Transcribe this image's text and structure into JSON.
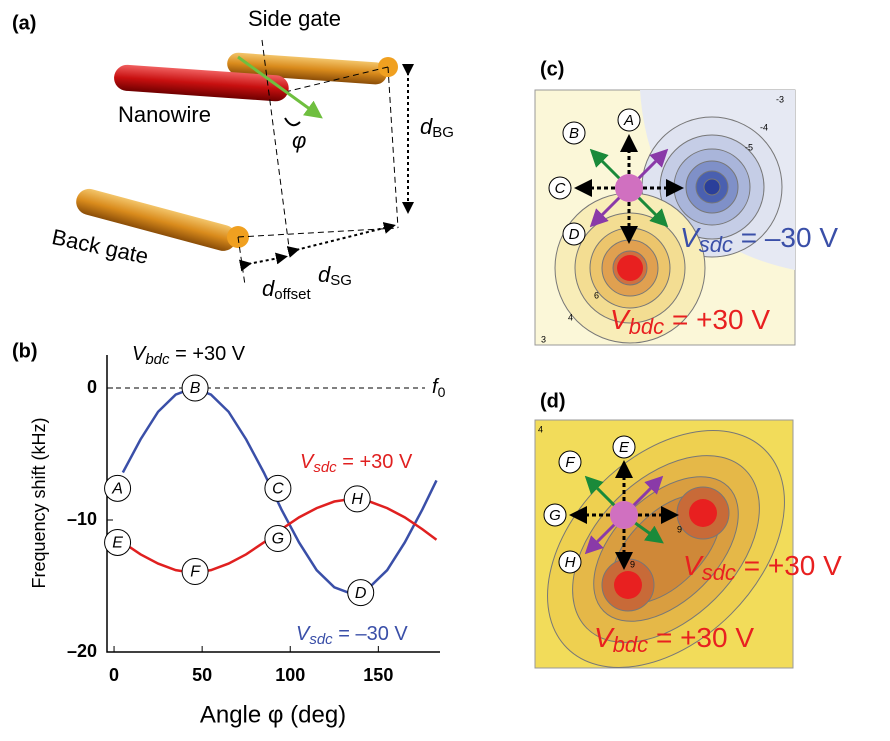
{
  "panels": {
    "a": {
      "label": "(a)",
      "side_gate": "Side gate",
      "nanowire": "Nanowire",
      "angle": "φ",
      "back_gate": "Back gate",
      "d_bg": [
        "d",
        "BG"
      ],
      "d_sg": [
        "d",
        "SG"
      ],
      "d_offset": [
        "d",
        "offset"
      ]
    },
    "c": {
      "label": "(c)",
      "markers": [
        "A",
        "B",
        "C",
        "D"
      ],
      "v_sdc": [
        "V",
        "sdc",
        " = –30 V"
      ],
      "v_bdc": [
        "V",
        "bdc",
        " = +30 V"
      ],
      "contour_labels": [
        "-3",
        "-4",
        "-5",
        "3",
        "4",
        "6"
      ]
    },
    "d": {
      "label": "(d)",
      "markers": [
        "E",
        "F",
        "G",
        "H"
      ],
      "v_sdc": [
        "V",
        "sdc",
        " = +30 V"
      ],
      "v_bdc": [
        "V",
        "bdc",
        " = +30 V"
      ],
      "contour_labels": [
        "4",
        "9",
        "9"
      ]
    }
  },
  "chart_data": {
    "type": "line",
    "panel_label": "(b)",
    "title": [
      "V",
      "bdc",
      " = +30 V"
    ],
    "x_label": "Angle φ (deg)",
    "y_label": "Frequency shift (kHz)",
    "x": [
      5,
      15,
      25,
      35,
      45,
      55,
      65,
      75,
      85,
      95,
      105,
      115,
      125,
      135,
      145,
      155,
      165,
      175,
      183
    ],
    "series": [
      {
        "name": [
          "V",
          "sdc",
          " = –30 V"
        ],
        "color": "#3a4fa8",
        "values": [
          -6.4,
          -3.9,
          -1.8,
          -0.5,
          0,
          -0.5,
          -1.8,
          -3.9,
          -6.4,
          -9.2,
          -11.7,
          -13.8,
          -15.1,
          -15.6,
          -15.1,
          -13.8,
          -11.7,
          -9.2,
          -7.0
        ]
      },
      {
        "name": [
          "V",
          "sdc",
          " = +30 V"
        ],
        "color": "#e02020",
        "values": [
          -11.7,
          -12.6,
          -13.3,
          -13.8,
          -14.0,
          -13.8,
          -13.3,
          -12.6,
          -11.7,
          -10.7,
          -9.8,
          -9.1,
          -8.6,
          -8.4,
          -8.6,
          -9.1,
          -9.8,
          -10.7,
          -11.5
        ]
      }
    ],
    "reference_line": {
      "value": 0,
      "label": [
        "f",
        "0"
      ]
    },
    "points": [
      {
        "label": "A",
        "x": 2,
        "y": -7.6
      },
      {
        "label": "B",
        "x": 46,
        "y": 0
      },
      {
        "label": "C",
        "x": 93,
        "y": -7.6
      },
      {
        "label": "D",
        "x": 140,
        "y": -15.5
      },
      {
        "label": "E",
        "x": 2,
        "y": -11.7
      },
      {
        "label": "F",
        "x": 46,
        "y": -13.9
      },
      {
        "label": "G",
        "x": 93,
        "y": -11.4
      },
      {
        "label": "H",
        "x": 138,
        "y": -8.4
      }
    ],
    "xlim": [
      -4,
      185
    ],
    "ylim": [
      -20,
      2.5
    ],
    "xticks": [
      0,
      50,
      100,
      150
    ],
    "yticks": [
      {
        "value": 0,
        "label": "0"
      },
      {
        "value": -10,
        "label": "–10"
      },
      {
        "value": -20,
        "label": "–20"
      }
    ]
  }
}
